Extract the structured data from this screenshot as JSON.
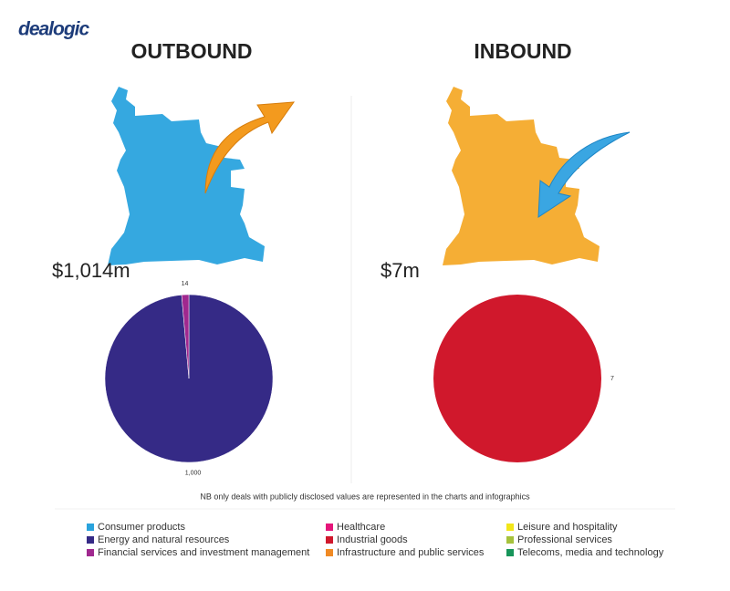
{
  "logo": "dealogic",
  "chart_data": [
    {
      "type": "pie",
      "title": "OUTBOUND",
      "subtitle": "$1,014m",
      "values": [
        1000,
        14
      ],
      "value_labels": [
        "1,000",
        "14"
      ],
      "colors": [
        "#352a86",
        "#a0288f"
      ]
    },
    {
      "type": "pie",
      "title": "INBOUND",
      "subtitle": "$7m",
      "values": [
        7
      ],
      "colors": [
        "#d0182c"
      ]
    }
  ],
  "note": "NB only deals with publicly disclosed values are represented in the charts and infographics",
  "legend": [
    {
      "name": "Consumer products",
      "color": "#29a3dd"
    },
    {
      "name": "Energy and natural resources",
      "color": "#352a86"
    },
    {
      "name": "Financial services and investment management",
      "color": "#a0288f"
    },
    {
      "name": "Healthcare",
      "color": "#e5157a"
    },
    {
      "name": "Industrial goods",
      "color": "#d0182c"
    },
    {
      "name": "Infrastructure and public services",
      "color": "#f08a24"
    },
    {
      "name": "Leisure and hospitality",
      "color": "#f2e619"
    },
    {
      "name": "Professional services",
      "color": "#a6c23c"
    },
    {
      "name": "Telecoms, media and technology",
      "color": "#17955a"
    }
  ]
}
